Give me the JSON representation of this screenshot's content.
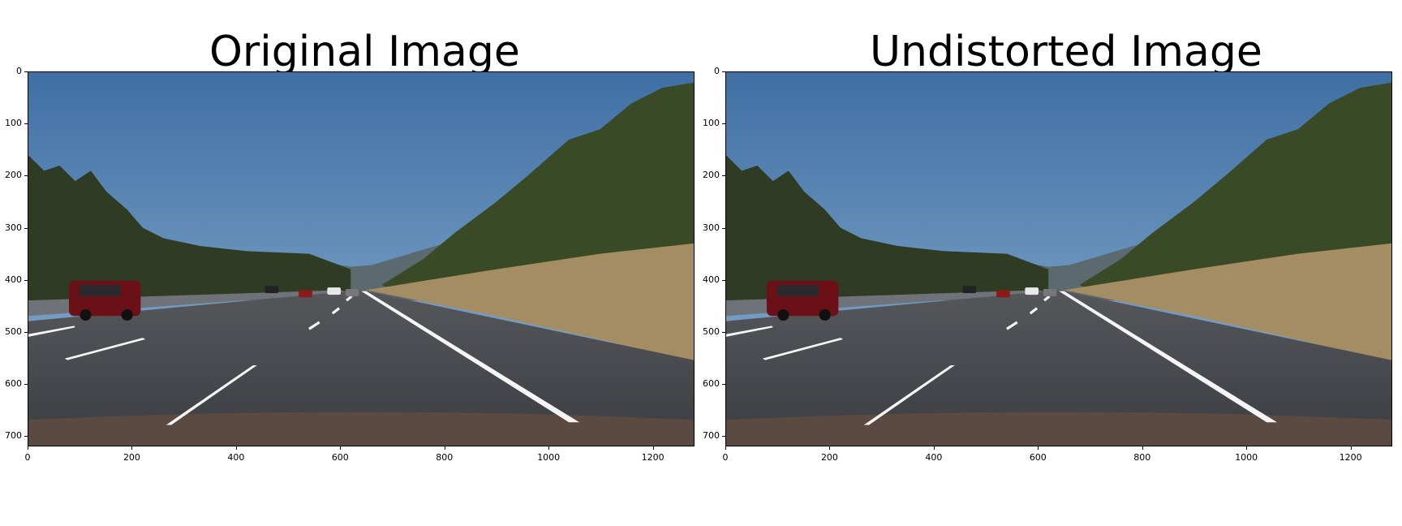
{
  "figure": {
    "panels": [
      {
        "id": "left",
        "title": "Original Image",
        "image_content": "highway dashcam photo",
        "yticks": [
          "0",
          "100",
          "200",
          "300",
          "400",
          "500",
          "600",
          "700"
        ],
        "xticks": [
          "0",
          "200",
          "400",
          "600",
          "800",
          "1000",
          "1200"
        ],
        "xlim": [
          0,
          1280
        ],
        "ylim": [
          720,
          0
        ]
      },
      {
        "id": "right",
        "title": "Undistorted Image",
        "image_content": "highway dashcam photo",
        "yticks": [
          "0",
          "100",
          "200",
          "300",
          "400",
          "500",
          "600",
          "700"
        ],
        "xticks": [
          "0",
          "200",
          "400",
          "600",
          "800",
          "1000",
          "1200"
        ],
        "xlim": [
          0,
          1280
        ],
        "ylim": [
          720,
          0
        ]
      }
    ]
  },
  "colors": {
    "sky_top": "#3f6fa3",
    "sky_bottom": "#8fb3d4",
    "road": "#3b3d42",
    "trees": "#2f3b22",
    "grass": "#a48d63",
    "lane_marking": "#f5f5f5"
  }
}
